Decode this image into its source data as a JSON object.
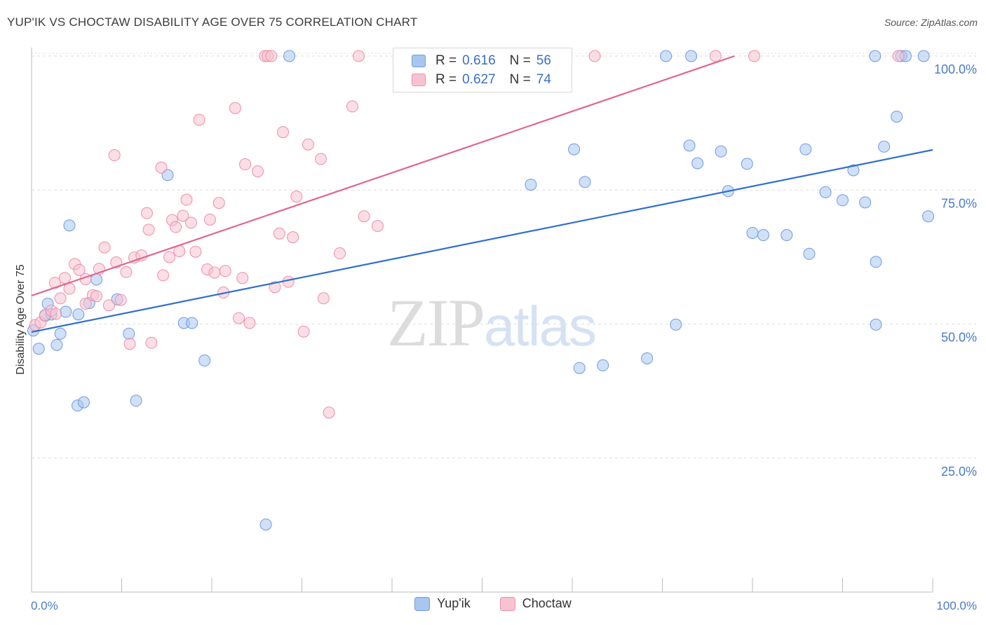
{
  "header": {
    "title": "YUP'IK VS CHOCTAW DISABILITY AGE OVER 75 CORRELATION CHART",
    "source": "Source: ZipAtlas.com"
  },
  "watermark": {
    "zip": "ZIP",
    "atlas": "atlas"
  },
  "legend": {
    "rows": [
      {
        "r_label": "R =",
        "r_value": "0.616",
        "n_label": "N =",
        "n_value": "56",
        "color": "#a9c6f0",
        "stroke": "#6d9be0"
      },
      {
        "r_label": "R =",
        "r_value": "0.627",
        "n_label": "N =",
        "n_value": "74",
        "color": "#f8c3d1",
        "stroke": "#ec8fa9"
      }
    ]
  },
  "chart_data": {
    "type": "scatter",
    "title": "YUP'IK VS CHOCTAW DISABILITY AGE OVER 75 CORRELATION CHART",
    "xlabel": "",
    "ylabel": "Disability Age Over 75",
    "xlim": [
      0,
      100
    ],
    "ylim": [
      0,
      100
    ],
    "x_tick_labels": [
      "0.0%",
      "100.0%"
    ],
    "y_tick_labels": [
      "100.0%",
      "75.0%",
      "50.0%",
      "25.0%"
    ],
    "y_ticks": [
      100,
      75,
      50,
      25
    ],
    "grid": true,
    "legend_placement": "bottom-center",
    "series": [
      {
        "name": "Yup'ik",
        "color": "#a9c6f0",
        "stroke": "#6d9be0",
        "line_color": "#2f6fcf",
        "trend": [
          [
            0,
            48.5
          ],
          [
            100,
            82.5
          ]
        ],
        "points": [
          [
            0.2,
            48.8
          ],
          [
            0.8,
            45.4
          ],
          [
            1.5,
            51.5
          ],
          [
            1.8,
            53.8
          ],
          [
            2.2,
            51.8
          ],
          [
            2.8,
            46.1
          ],
          [
            3.2,
            48.2
          ],
          [
            3.8,
            52.3
          ],
          [
            4.2,
            68.4
          ],
          [
            5.2,
            51.8
          ],
          [
            5.1,
            34.8
          ],
          [
            5.8,
            35.4
          ],
          [
            6.4,
            53.9
          ],
          [
            7.2,
            58.3
          ],
          [
            9.5,
            54.6
          ],
          [
            10.8,
            48.2
          ],
          [
            11.6,
            35.7
          ],
          [
            15.1,
            77.8
          ],
          [
            16.9,
            50.2
          ],
          [
            17.8,
            50.2
          ],
          [
            19.2,
            43.2
          ],
          [
            26.0,
            12.6
          ],
          [
            28.6,
            100
          ],
          [
            55.4,
            76.0
          ],
          [
            58.6,
            100
          ],
          [
            60.2,
            82.6
          ],
          [
            60.8,
            41.8
          ],
          [
            61.4,
            76.5
          ],
          [
            63.4,
            42.3
          ],
          [
            68.3,
            43.6
          ],
          [
            70.4,
            100
          ],
          [
            71.5,
            49.9
          ],
          [
            73.0,
            83.3
          ],
          [
            73.2,
            100
          ],
          [
            73.9,
            80.0
          ],
          [
            76.5,
            82.2
          ],
          [
            77.3,
            74.8
          ],
          [
            79.4,
            79.9
          ],
          [
            80.0,
            67.0
          ],
          [
            81.2,
            66.6
          ],
          [
            83.8,
            66.6
          ],
          [
            85.9,
            82.6
          ],
          [
            86.3,
            63.1
          ],
          [
            88.1,
            74.6
          ],
          [
            90.0,
            73.1
          ],
          [
            91.2,
            78.7
          ],
          [
            92.5,
            72.7
          ],
          [
            93.6,
            100
          ],
          [
            93.7,
            61.6
          ],
          [
            93.7,
            49.9
          ],
          [
            94.6,
            83.1
          ],
          [
            96.0,
            88.7
          ],
          [
            96.5,
            100
          ],
          [
            97.0,
            100
          ],
          [
            99.0,
            100
          ],
          [
            99.5,
            70.1
          ]
        ]
      },
      {
        "name": "Choctaw",
        "color": "#f8c3d1",
        "stroke": "#ec8fa9",
        "line_color": "#e0678f",
        "trend": [
          [
            0,
            55.3
          ],
          [
            78,
            100
          ]
        ],
        "points": [
          [
            0.4,
            49.8
          ],
          [
            1.0,
            50.3
          ],
          [
            1.5,
            51.7
          ],
          [
            2.2,
            52.5
          ],
          [
            2.7,
            51.9
          ],
          [
            2.6,
            57.7
          ],
          [
            3.2,
            54.8
          ],
          [
            3.7,
            58.6
          ],
          [
            4.2,
            56.6
          ],
          [
            4.8,
            61.2
          ],
          [
            5.3,
            60.1
          ],
          [
            6.0,
            58.4
          ],
          [
            6.0,
            53.8
          ],
          [
            6.8,
            55.4
          ],
          [
            7.2,
            55.2
          ],
          [
            7.5,
            60.3
          ],
          [
            8.1,
            64.3
          ],
          [
            8.6,
            53.5
          ],
          [
            9.2,
            81.5
          ],
          [
            9.4,
            61.5
          ],
          [
            9.9,
            54.5
          ],
          [
            10.5,
            59.7
          ],
          [
            10.9,
            46.3
          ],
          [
            11.4,
            62.4
          ],
          [
            12.2,
            62.8
          ],
          [
            12.8,
            70.7
          ],
          [
            13.0,
            67.6
          ],
          [
            13.3,
            46.5
          ],
          [
            14.4,
            79.2
          ],
          [
            14.6,
            59.1
          ],
          [
            15.3,
            62.5
          ],
          [
            15.6,
            69.4
          ],
          [
            16.0,
            68.1
          ],
          [
            16.4,
            63.6
          ],
          [
            16.8,
            70.2
          ],
          [
            17.2,
            73.2
          ],
          [
            17.7,
            68.9
          ],
          [
            18.2,
            63.5
          ],
          [
            18.6,
            88.1
          ],
          [
            19.5,
            60.2
          ],
          [
            19.8,
            69.5
          ],
          [
            20.3,
            59.6
          ],
          [
            20.8,
            72.6
          ],
          [
            21.3,
            55.9
          ],
          [
            21.5,
            59.9
          ],
          [
            22.6,
            90.3
          ],
          [
            23.0,
            51.1
          ],
          [
            23.4,
            58.6
          ],
          [
            23.7,
            79.8
          ],
          [
            24.2,
            50.2
          ],
          [
            25.1,
            78.5
          ],
          [
            25.9,
            100
          ],
          [
            26.2,
            100
          ],
          [
            26.6,
            100
          ],
          [
            27.0,
            56.9
          ],
          [
            27.5,
            66.9
          ],
          [
            27.9,
            85.8
          ],
          [
            28.5,
            57.9
          ],
          [
            29.0,
            66.2
          ],
          [
            29.4,
            73.8
          ],
          [
            30.2,
            48.6
          ],
          [
            30.7,
            83.5
          ],
          [
            32.1,
            80.8
          ],
          [
            32.4,
            54.8
          ],
          [
            33.0,
            33.5
          ],
          [
            34.2,
            63.2
          ],
          [
            35.6,
            90.6
          ],
          [
            36.3,
            100
          ],
          [
            36.9,
            70.1
          ],
          [
            38.4,
            68.3
          ],
          [
            62.5,
            100
          ],
          [
            75.9,
            100
          ],
          [
            80.2,
            100
          ],
          [
            96.2,
            100
          ]
        ]
      }
    ]
  },
  "bottom_legend": [
    {
      "label": "Yup'ik",
      "color": "#a9c6f0",
      "stroke": "#6d9be0"
    },
    {
      "label": "Choctaw",
      "color": "#f8c3d1",
      "stroke": "#ec8fa9"
    }
  ]
}
